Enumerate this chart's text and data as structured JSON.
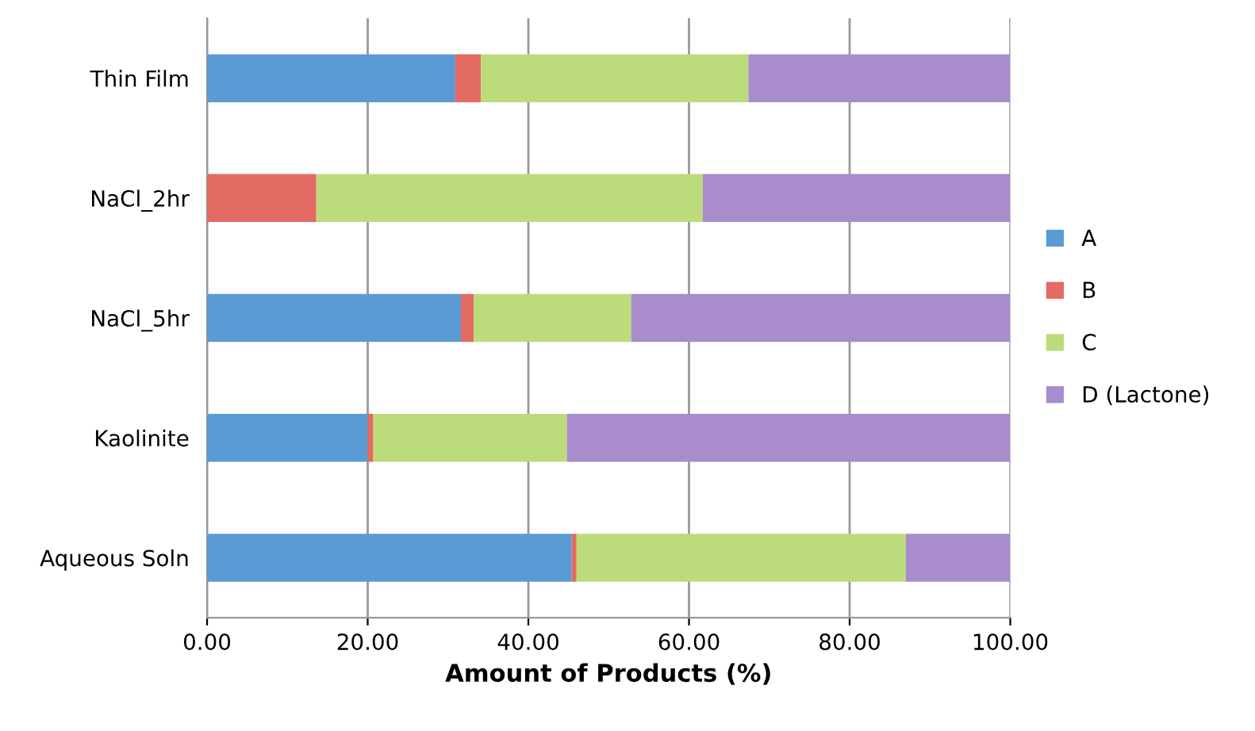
{
  "chart_data": {
    "type": "bar",
    "orientation": "horizontal",
    "stacked": true,
    "xlabel": "Amount of Products (%)",
    "categories": [
      "Thin Film",
      "NaCl_2hr",
      "NaCl_5hr",
      "Kaolinite",
      "Aqueous Soln"
    ],
    "series": [
      {
        "name": "A",
        "color": "#5b9bd5",
        "values": [
          30.9,
          0,
          31.6,
          20.0,
          45.4
        ]
      },
      {
        "name": "B",
        "color": "#e36b63",
        "values": [
          3.2,
          13.6,
          1.6,
          0.7,
          0.6
        ]
      },
      {
        "name": "C",
        "color": "#bcdc7c",
        "values": [
          33.3,
          48.1,
          19.6,
          24.1,
          41.0
        ]
      },
      {
        "name": "D (Lactone)",
        "color": "#a88ccb",
        "values": [
          32.6,
          38.3,
          47.2,
          55.2,
          13.0
        ]
      }
    ],
    "xlim": [
      0,
      100
    ],
    "xticks": [
      {
        "value": 0,
        "label": "0.00"
      },
      {
        "value": 20,
        "label": "20.00"
      },
      {
        "value": 40,
        "label": "40.00"
      },
      {
        "value": 60,
        "label": "60.00"
      },
      {
        "value": 80,
        "label": "80.00"
      },
      {
        "value": 100,
        "label": "100.00"
      }
    ],
    "grid": "x",
    "legend": "right"
  }
}
